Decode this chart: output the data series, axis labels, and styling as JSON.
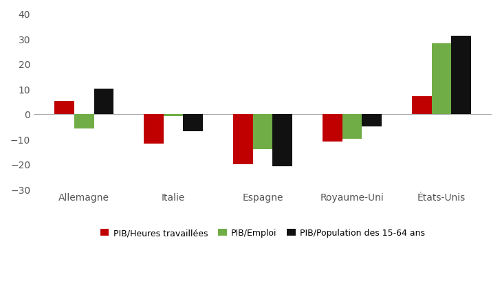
{
  "categories": [
    "Allemagne",
    "Italie",
    "Espagne",
    "Royaume-Uni",
    "États-Unis"
  ],
  "series": {
    "PIB/Heures travaillées": [
      5,
      -12,
      -20,
      -11,
      7
    ],
    "PIB/Emploi": [
      -6,
      -1,
      -14,
      -10,
      28
    ],
    "PIB/Population des 15-64 ans": [
      10,
      -7,
      -21,
      -5,
      31
    ]
  },
  "colors": {
    "PIB/Heures travaillées": "#C00000",
    "PIB/Emploi": "#70AD47",
    "PIB/Population des 15-64 ans": "#111111"
  },
  "ylim": [
    -30,
    40
  ],
  "yticks": [
    -30,
    -20,
    -10,
    0,
    10,
    20,
    30,
    40
  ],
  "bar_width": 0.22,
  "legend_labels": [
    "PIB/Heures travaillées",
    "PIB/Emploi",
    "PIB/Population des 15-64 ans"
  ],
  "background_color": "#FFFFFF"
}
